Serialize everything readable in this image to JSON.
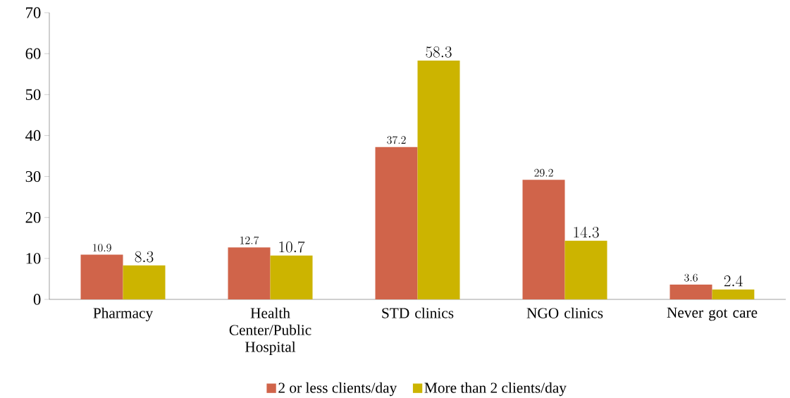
{
  "chart_data": {
    "type": "bar",
    "categories": [
      "Pharmacy",
      "Health Center/Public Hospital",
      "STD clinics",
      "NGO clinics",
      "Never got care"
    ],
    "series": [
      {
        "name": "2 or less clients/day",
        "color": "#d0644a",
        "values": [
          10.9,
          12.7,
          37.2,
          29.2,
          3.6
        ]
      },
      {
        "name": "More than 2 clients/day",
        "color": "#ccb400",
        "values": [
          8.3,
          10.7,
          58.3,
          14.3,
          2.4
        ]
      }
    ],
    "ylim": [
      0,
      70
    ],
    "yticks": [
      0,
      10,
      20,
      30,
      40,
      50,
      60,
      70
    ],
    "data_labels": true,
    "grid": false,
    "legend": "bottom"
  }
}
